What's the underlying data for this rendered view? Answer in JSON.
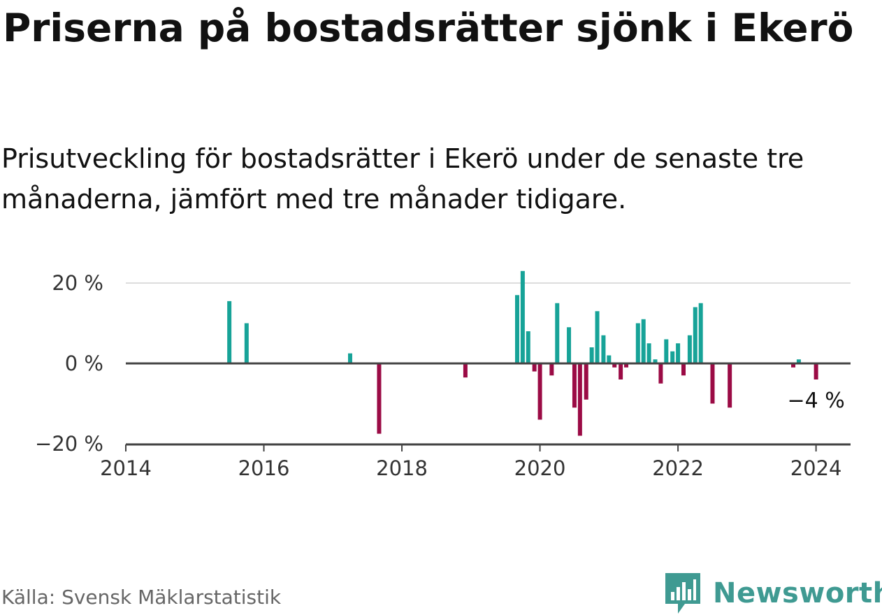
{
  "title": "Priserna på bostadsrätter sjönk i Ekerö",
  "subtitle": "Prisutveckling för bostadsrätter i Ekerö under de senaste tre månaderna, jämfört med tre månader tidigare.",
  "source": "Källa: Svensk Mäklarstatistik",
  "brand": {
    "name": "Newsworthy",
    "icon": "newsworthy-logo-icon",
    "color": "#3f9a92"
  },
  "colors": {
    "positive": "#17a398",
    "negative": "#9b0b45",
    "zero_line": "#444444",
    "grid": "#dddddd"
  },
  "chart_data": {
    "type": "bar",
    "ylim": [
      -20,
      20
    ],
    "xlim": [
      2014.0,
      2024.5
    ],
    "y_ticks": [
      {
        "value": 20,
        "label": "20 %"
      },
      {
        "value": 0,
        "label": "0 %"
      },
      {
        "value": -20,
        "label": "−20 %"
      }
    ],
    "x_ticks": [
      {
        "value": 2014,
        "label": "2014"
      },
      {
        "value": 2016,
        "label": "2016"
      },
      {
        "value": 2018,
        "label": "2018"
      },
      {
        "value": 2020,
        "label": "2020"
      },
      {
        "value": 2022,
        "label": "2022"
      },
      {
        "value": 2024,
        "label": "2024"
      }
    ],
    "end_label": "−4 %",
    "series": [
      {
        "name": "Prisutveckling",
        "points": [
          {
            "x": 2015.5,
            "y": 15.5
          },
          {
            "x": 2015.75,
            "y": 10
          },
          {
            "x": 2017.25,
            "y": 2.5
          },
          {
            "x": 2017.67,
            "y": -17.5
          },
          {
            "x": 2018.92,
            "y": -3.5
          },
          {
            "x": 2019.67,
            "y": 17
          },
          {
            "x": 2019.75,
            "y": 23
          },
          {
            "x": 2019.83,
            "y": 8
          },
          {
            "x": 2019.92,
            "y": -2
          },
          {
            "x": 2020.0,
            "y": -14
          },
          {
            "x": 2020.17,
            "y": -3
          },
          {
            "x": 2020.25,
            "y": 15
          },
          {
            "x": 2020.42,
            "y": 9
          },
          {
            "x": 2020.5,
            "y": -11
          },
          {
            "x": 2020.58,
            "y": -18
          },
          {
            "x": 2020.67,
            "y": -9
          },
          {
            "x": 2020.75,
            "y": 4
          },
          {
            "x": 2020.83,
            "y": 13
          },
          {
            "x": 2020.92,
            "y": 7
          },
          {
            "x": 2021.0,
            "y": 2
          },
          {
            "x": 2021.08,
            "y": -1
          },
          {
            "x": 2021.17,
            "y": -4
          },
          {
            "x": 2021.25,
            "y": -1
          },
          {
            "x": 2021.42,
            "y": 10
          },
          {
            "x": 2021.5,
            "y": 11
          },
          {
            "x": 2021.58,
            "y": 5
          },
          {
            "x": 2021.67,
            "y": 1
          },
          {
            "x": 2021.75,
            "y": -5
          },
          {
            "x": 2021.83,
            "y": 6
          },
          {
            "x": 2021.92,
            "y": 3
          },
          {
            "x": 2022.0,
            "y": 5
          },
          {
            "x": 2022.08,
            "y": -3
          },
          {
            "x": 2022.17,
            "y": 7
          },
          {
            "x": 2022.25,
            "y": 14
          },
          {
            "x": 2022.33,
            "y": 15
          },
          {
            "x": 2022.5,
            "y": -10
          },
          {
            "x": 2022.75,
            "y": -11
          },
          {
            "x": 2023.67,
            "y": -1
          },
          {
            "x": 2023.75,
            "y": 1
          },
          {
            "x": 2024.0,
            "y": -4
          }
        ]
      }
    ]
  }
}
